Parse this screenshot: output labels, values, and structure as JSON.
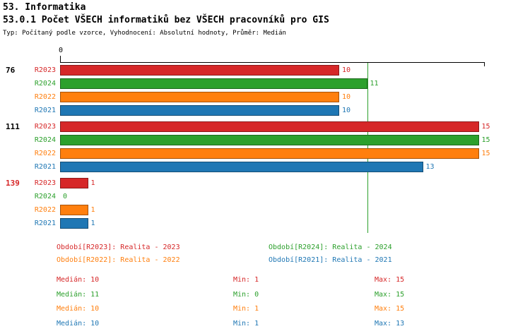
{
  "header": {
    "title1": "53. Informatika",
    "title2": "53.0.1 Počet VŠECH informatiků bez VŠECH pracovníků pro GIS",
    "subtitle": "Typ: Počítaný podle vzorce, Vyhodnocení: Absolutní hodnoty, Průměr: Medián"
  },
  "chart_data": {
    "type": "bar",
    "orientation": "horizontal",
    "title": "53.0.1 Počet VŠECH informatiků bez VŠECH pracovníků pro GIS",
    "x_axis": {
      "min": 0,
      "max": 15.2,
      "tick_labels": [
        "0"
      ],
      "grid": false
    },
    "series_order": [
      "R2023",
      "R2024",
      "R2022",
      "R2021"
    ],
    "series_colors": {
      "R2023": "#d62728",
      "R2024": "#2ca02c",
      "R2022": "#ff7f0e",
      "R2021": "#1f77b4"
    },
    "median_line": {
      "value": 11,
      "color": "#2ca02c"
    },
    "groups": [
      {
        "label": "76",
        "label_color": "#000000",
        "values": {
          "R2023": 10,
          "R2024": 11,
          "R2022": 10,
          "R2021": 10
        }
      },
      {
        "label": "111",
        "label_color": "#000000",
        "values": {
          "R2023": 15,
          "R2024": 15,
          "R2022": 15,
          "R2021": 13
        }
      },
      {
        "label": "139",
        "label_color": "#d62728",
        "values": {
          "R2023": 1,
          "R2024": 0,
          "R2022": 1,
          "R2021": 1
        }
      }
    ]
  },
  "legend": [
    {
      "label": "Období[R2023]: Realita - 2023",
      "color": "#d62728"
    },
    {
      "label": "Období[R2024]: Realita - 2024",
      "color": "#2ca02c"
    },
    {
      "label": "Období[R2022]: Realita - 2022",
      "color": "#ff7f0e"
    },
    {
      "label": "Období[R2021]: Realita - 2021",
      "color": "#1f77b4"
    }
  ],
  "stats": [
    {
      "median": "Medián: 10",
      "min": "Min: 1",
      "max": "Max: 15",
      "color": "#d62728"
    },
    {
      "median": "Medián: 11",
      "min": "Min: 0",
      "max": "Max: 15",
      "color": "#2ca02c"
    },
    {
      "median": "Medián: 10",
      "min": "Min: 1",
      "max": "Max: 15",
      "color": "#ff7f0e"
    },
    {
      "median": "Medián: 10",
      "min": "Min: 1",
      "max": "Max: 13",
      "color": "#1f77b4"
    }
  ]
}
